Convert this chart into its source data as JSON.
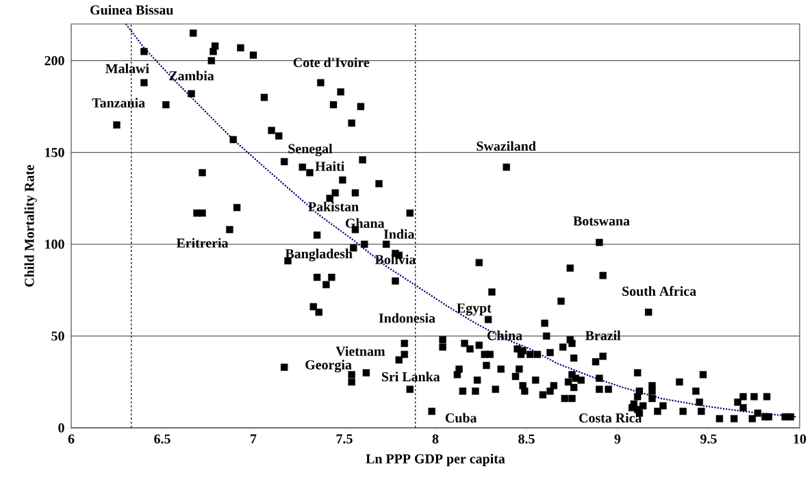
{
  "chart_data": {
    "type": "scatter",
    "xlabel": "Ln PPP GDP per capita",
    "ylabel": "Child Mortality Rate",
    "xlim": [
      6,
      10
    ],
    "ylim": [
      0,
      220
    ],
    "xticks": [
      6,
      6.5,
      7,
      7.5,
      8,
      8.5,
      9,
      9.5,
      10
    ],
    "yticks": [
      0,
      50,
      100,
      150,
      200
    ],
    "grid": "y",
    "marker": "square",
    "series": [
      {
        "type": "scatter",
        "color": "#000000",
        "x": [
          6.67,
          6.4,
          6.79,
          6.78,
          6.77,
          6.93,
          7.0,
          6.4,
          6.66,
          6.52,
          6.25,
          7.06,
          7.1,
          6.89,
          6.72,
          6.91,
          6.69,
          6.72,
          6.87,
          7.37,
          7.48,
          7.44,
          7.59,
          7.54,
          7.14,
          7.17,
          7.27,
          7.31,
          7.6,
          7.49,
          7.69,
          7.45,
          7.56,
          7.42,
          7.86,
          7.56,
          7.35,
          7.61,
          7.73,
          7.55,
          7.78,
          7.8,
          7.19,
          7.35,
          7.43,
          7.4,
          7.78,
          7.33,
          7.36,
          8.04,
          8.04,
          7.83,
          7.83,
          7.8,
          7.17,
          7.54,
          7.54,
          7.62,
          7.86,
          7.98,
          8.13,
          8.12,
          8.15,
          8.16,
          8.39,
          8.9,
          8.24,
          8.74,
          8.92,
          8.31,
          8.69,
          8.29,
          8.6,
          8.61,
          8.74,
          8.75,
          8.7,
          8.19,
          8.24,
          8.27,
          8.3,
          8.28,
          8.36,
          8.23,
          8.22,
          8.33,
          8.45,
          8.48,
          8.47,
          8.52,
          8.56,
          8.63,
          8.76,
          8.88,
          8.92,
          8.46,
          8.44,
          8.55,
          8.48,
          8.49,
          8.59,
          8.63,
          8.65,
          8.71,
          8.75,
          8.75,
          8.77,
          8.73,
          8.8,
          8.76,
          8.9,
          8.9,
          8.95,
          9.11,
          9.17,
          9.47,
          9.34,
          9.19,
          9.19,
          9.12,
          9.43,
          9.45,
          9.46,
          9.36,
          9.25,
          9.22,
          9.19,
          9.11,
          9.09,
          9.14,
          9.11,
          9.12,
          9.08,
          9.56,
          9.64,
          9.66,
          9.69,
          9.69,
          9.75,
          9.82,
          9.74,
          9.77,
          9.81,
          9.83,
          9.92,
          9.95
        ],
        "values": [
          215,
          205,
          208,
          205,
          200,
          207,
          203,
          188,
          182,
          176,
          165,
          180,
          162,
          157,
          139,
          120,
          117,
          117,
          108,
          188,
          183,
          176,
          175,
          166,
          159,
          145,
          142,
          139,
          146,
          135,
          133,
          128,
          128,
          125,
          117,
          108,
          105,
          100,
          100,
          98,
          95,
          94,
          91,
          82,
          82,
          78,
          80,
          66,
          63,
          48,
          44,
          46,
          40,
          37,
          33,
          29,
          25,
          30,
          21,
          9,
          32,
          29,
          20,
          46,
          142,
          101,
          90,
          87,
          83,
          74,
          69,
          59,
          57,
          50,
          48,
          46,
          44,
          43,
          45,
          40,
          40,
          34,
          32,
          26,
          20,
          21,
          43,
          42,
          40,
          40,
          40,
          41,
          38,
          36,
          39,
          32,
          28,
          26,
          23,
          20,
          18,
          20,
          23,
          16,
          16,
          29,
          27,
          25,
          26,
          22,
          27,
          21,
          21,
          30,
          63,
          29,
          25,
          23,
          20,
          20,
          20,
          14,
          9,
          9,
          12,
          9,
          16,
          17,
          13,
          12,
          10,
          8,
          11,
          5,
          5,
          14,
          17,
          11,
          17,
          17,
          5,
          8,
          6,
          6,
          6,
          6
        ]
      },
      {
        "type": "line",
        "color": "#000080",
        "line_style": "dotted",
        "marker": "none",
        "x": [
          6.3,
          6.4,
          6.57,
          6.89,
          7.06,
          7.36,
          7.54,
          7.73,
          7.87,
          8.07,
          8.22,
          8.37,
          8.52,
          8.67,
          8.88,
          9.03,
          9.24,
          9.47,
          9.69,
          9.98
        ],
        "values": [
          220,
          207,
          189,
          157,
          142,
          116,
          103,
          88,
          79,
          66,
          57,
          49,
          43,
          35,
          27,
          22,
          16,
          12,
          9,
          6
        ]
      }
    ],
    "ref_lines": [
      {
        "axis": "x",
        "value": 6.33,
        "color": "#000000",
        "line_style": "dashed"
      },
      {
        "axis": "x",
        "value": 7.89,
        "color": "#000000",
        "line_style": "dashed"
      }
    ],
    "annotations": [
      "Guinea Bissau",
      "Malawi",
      "Zambia",
      "Tanzania",
      "Cote d'Ivoire",
      "Senegal",
      "Haiti",
      "Pakistan",
      "Ghana",
      "India",
      "Eritreria",
      "Bangladesh",
      "Bolivia",
      "Swaziland",
      "Botswana",
      "South Africa",
      "Egypt",
      "Indonesia",
      "China",
      "Brazil",
      "Vietnam",
      "Georgia",
      "Sri Lanka",
      "Cuba",
      "Costa Rica"
    ]
  }
}
